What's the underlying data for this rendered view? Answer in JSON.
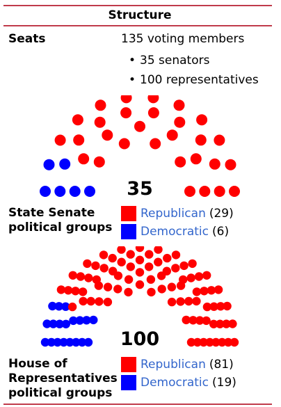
{
  "title": "Structure",
  "seats": {
    "label": "Seats",
    "value": "135 voting members",
    "breakdown": [
      "35 senators",
      "100 representatives"
    ]
  },
  "senate": {
    "total": "35",
    "label_lines": [
      "State Senate",
      "political groups"
    ],
    "parties": [
      {
        "name": "Republican",
        "count": "(29)",
        "color": "#ff0000",
        "seats": 29
      },
      {
        "name": "Democratic",
        "count": "(6)",
        "color": "#0000ff",
        "seats": 6
      }
    ]
  },
  "house": {
    "total": "100",
    "label_lines": [
      "House of",
      "Representatives",
      "political groups"
    ],
    "parties": [
      {
        "name": "Republican",
        "count": "(81)",
        "color": "#ff0000",
        "seats": 81
      },
      {
        "name": "Democratic",
        "count": "(19)",
        "color": "#0000ff",
        "seats": 19
      }
    ]
  }
}
